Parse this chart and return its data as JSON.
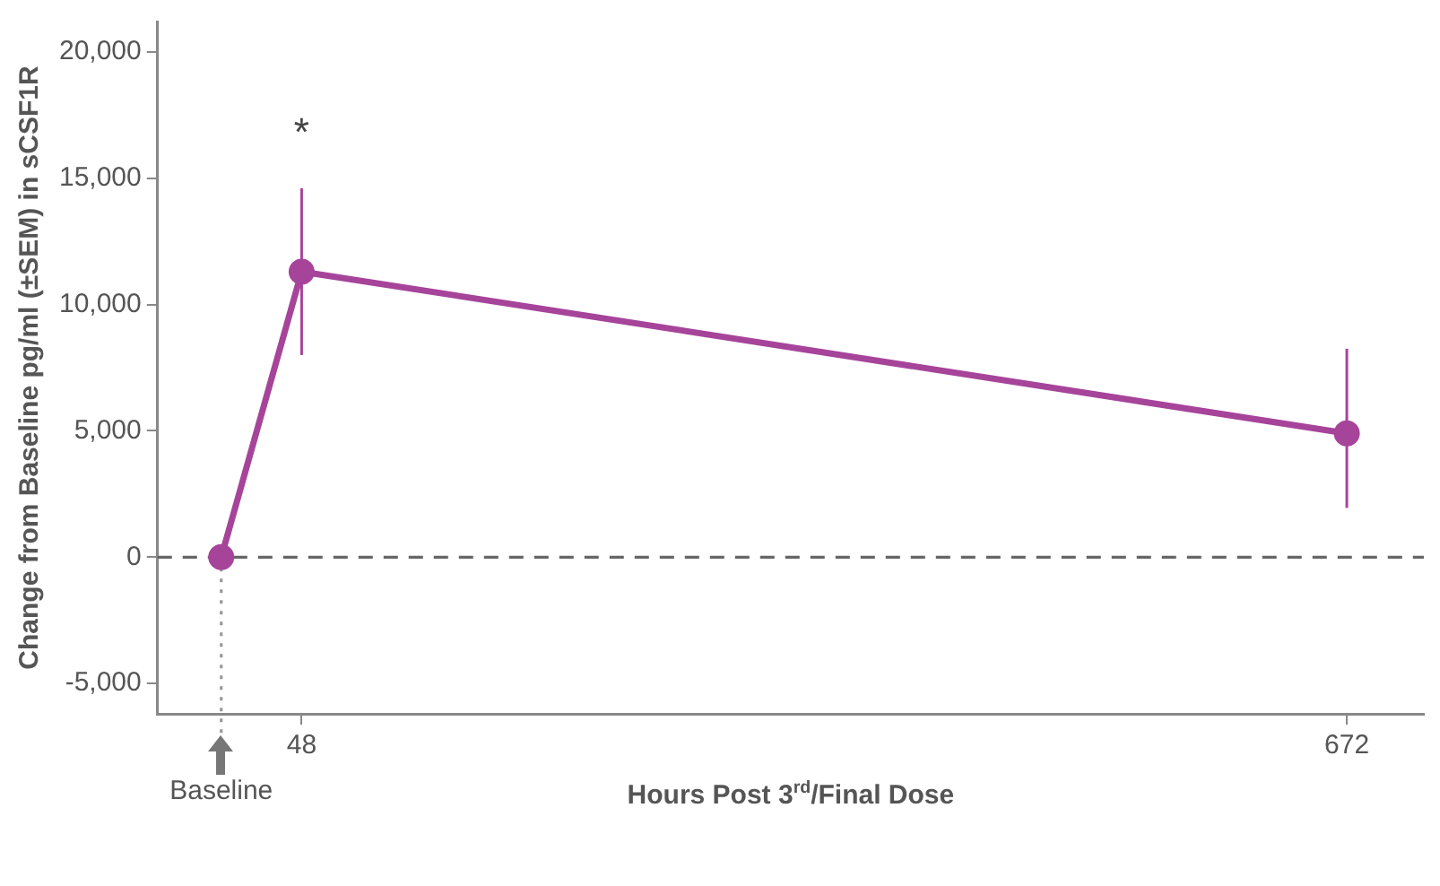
{
  "chart_data": {
    "type": "line",
    "xlabel": "Hours Post 3$^{rd}$/Final Dose",
    "ylabel": "Change from Baseline pg/ml (±SEM) in sCSF1R",
    "x": [
      0,
      48,
      672
    ],
    "series": [
      {
        "color": "#a6449a",
        "values": [
          0,
          11300,
          4900
        ],
        "errors": [
          null,
          [
            8000,
            14600
          ],
          [
            1950,
            8250
          ]
        ]
      }
    ],
    "xlim": [
      -38,
      718
    ],
    "xticks": [
      48,
      672
    ],
    "ylim": [
      -6200,
      21200
    ],
    "yticks": [
      {
        "value": -5000,
        "label": "-5,000"
      },
      {
        "value": 0,
        "label": "0"
      },
      {
        "value": 5000,
        "label": "5,000"
      },
      {
        "value": 10000,
        "label": "10,000"
      },
      {
        "value": 15000,
        "label": "15,000"
      },
      {
        "value": 20000,
        "label": "20,000"
      }
    ],
    "ref_lines": [
      {
        "axis": "y",
        "value": 0,
        "color": "#666666",
        "line_style": "dashed"
      },
      {
        "axis": "x",
        "value": 0,
        "label": "Baseline",
        "color": "#999999",
        "line_style": "dotted"
      }
    ],
    "annotations": [
      {
        "text": "*",
        "x": 48,
        "y": 14600
      }
    ],
    "marker": "circle",
    "line_style": "solid",
    "grid": false,
    "legend": false
  }
}
